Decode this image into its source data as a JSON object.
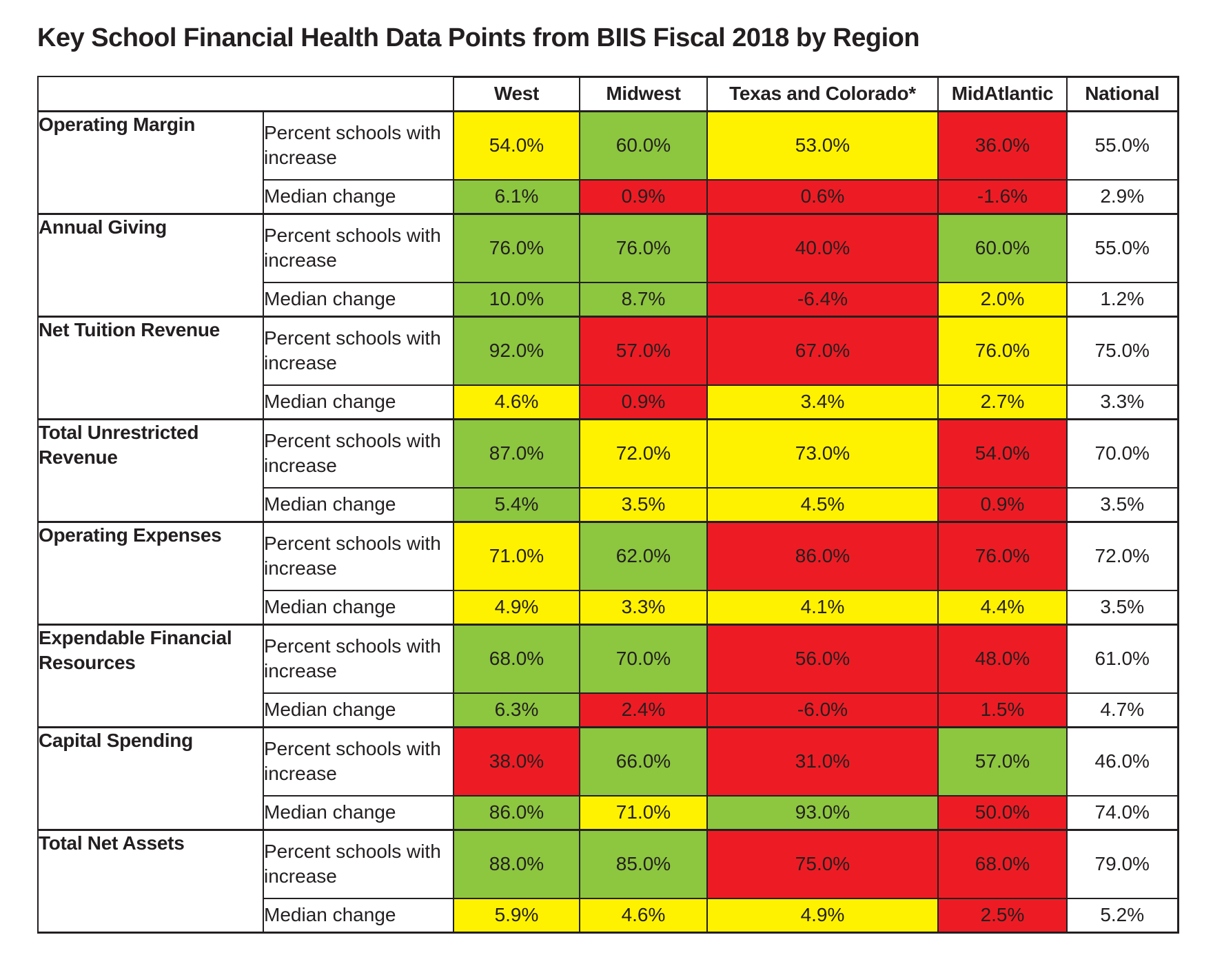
{
  "title": "Key School Financial Health Data Points from BIIS Fiscal 2018 by Region",
  "colors": {
    "status": {
      "green": "#8dc63f",
      "yellow": "#fff200",
      "red": "#ed1c24",
      "white": "#ffffff"
    }
  },
  "chart_data": {
    "type": "table",
    "title": "Key School Financial Health Data Points from BIIS Fiscal 2018 by Region",
    "region_columns": [
      "West",
      "Midwest",
      "Texas and Colorado*",
      "MidAtlantic",
      "National"
    ],
    "metric_row_labels": [
      "Percent schools with increase",
      "Median change"
    ],
    "color_legend_meaning": "green=favorable, yellow=moderate, red=unfavorable, white=national baseline",
    "rows": [
      {
        "category": "Operating Margin",
        "percent_increase": {
          "values": [
            "54.0%",
            "60.0%",
            "53.0%",
            "36.0%",
            "55.0%"
          ],
          "colors": [
            "yellow",
            "green",
            "yellow",
            "red",
            "white"
          ]
        },
        "median_change": {
          "values": [
            "6.1%",
            "0.9%",
            "0.6%",
            "-1.6%",
            "2.9%"
          ],
          "colors": [
            "green",
            "red",
            "red",
            "red",
            "white"
          ]
        }
      },
      {
        "category": "Annual Giving",
        "percent_increase": {
          "values": [
            "76.0%",
            "76.0%",
            "40.0%",
            "60.0%",
            "55.0%"
          ],
          "colors": [
            "green",
            "green",
            "red",
            "green",
            "white"
          ]
        },
        "median_change": {
          "values": [
            "10.0%",
            "8.7%",
            "-6.4%",
            "2.0%",
            "1.2%"
          ],
          "colors": [
            "green",
            "green",
            "red",
            "yellow",
            "white"
          ]
        }
      },
      {
        "category": "Net Tuition Revenue",
        "percent_increase": {
          "values": [
            "92.0%",
            "57.0%",
            "67.0%",
            "76.0%",
            "75.0%"
          ],
          "colors": [
            "green",
            "red",
            "red",
            "yellow",
            "white"
          ]
        },
        "median_change": {
          "values": [
            "4.6%",
            "0.9%",
            "3.4%",
            "2.7%",
            "3.3%"
          ],
          "colors": [
            "yellow",
            "red",
            "yellow",
            "yellow",
            "white"
          ]
        }
      },
      {
        "category": "Total Unrestricted Revenue",
        "percent_increase": {
          "values": [
            "87.0%",
            "72.0%",
            "73.0%",
            "54.0%",
            "70.0%"
          ],
          "colors": [
            "green",
            "yellow",
            "yellow",
            "red",
            "white"
          ]
        },
        "median_change": {
          "values": [
            "5.4%",
            "3.5%",
            "4.5%",
            "0.9%",
            "3.5%"
          ],
          "colors": [
            "green",
            "yellow",
            "yellow",
            "red",
            "white"
          ]
        }
      },
      {
        "category": "Operating Expenses",
        "percent_increase": {
          "values": [
            "71.0%",
            "62.0%",
            "86.0%",
            "76.0%",
            "72.0%"
          ],
          "colors": [
            "yellow",
            "green",
            "red",
            "red",
            "white"
          ]
        },
        "median_change": {
          "values": [
            "4.9%",
            "3.3%",
            "4.1%",
            "4.4%",
            "3.5%"
          ],
          "colors": [
            "yellow",
            "yellow",
            "yellow",
            "yellow",
            "white"
          ]
        }
      },
      {
        "category": "Expendable Financial Resources",
        "percent_increase": {
          "values": [
            "68.0%",
            "70.0%",
            "56.0%",
            "48.0%",
            "61.0%"
          ],
          "colors": [
            "green",
            "green",
            "red",
            "red",
            "white"
          ]
        },
        "median_change": {
          "values": [
            "6.3%",
            "2.4%",
            "-6.0%",
            "1.5%",
            "4.7%"
          ],
          "colors": [
            "green",
            "red",
            "red",
            "red",
            "white"
          ]
        }
      },
      {
        "category": "Capital Spending",
        "percent_increase": {
          "values": [
            "38.0%",
            "66.0%",
            "31.0%",
            "57.0%",
            "46.0%"
          ],
          "colors": [
            "red",
            "green",
            "red",
            "green",
            "white"
          ]
        },
        "median_change": {
          "values": [
            "86.0%",
            "71.0%",
            "93.0%",
            "50.0%",
            "74.0%"
          ],
          "colors": [
            "green",
            "yellow",
            "green",
            "red",
            "white"
          ]
        }
      },
      {
        "category": "Total Net Assets",
        "percent_increase": {
          "values": [
            "88.0%",
            "85.0%",
            "75.0%",
            "68.0%",
            "79.0%"
          ],
          "colors": [
            "green",
            "green",
            "red",
            "red",
            "white"
          ]
        },
        "median_change": {
          "values": [
            "5.9%",
            "4.6%",
            "4.9%",
            "2.5%",
            "5.2%"
          ],
          "colors": [
            "yellow",
            "yellow",
            "yellow",
            "red",
            "white"
          ]
        }
      }
    ]
  }
}
